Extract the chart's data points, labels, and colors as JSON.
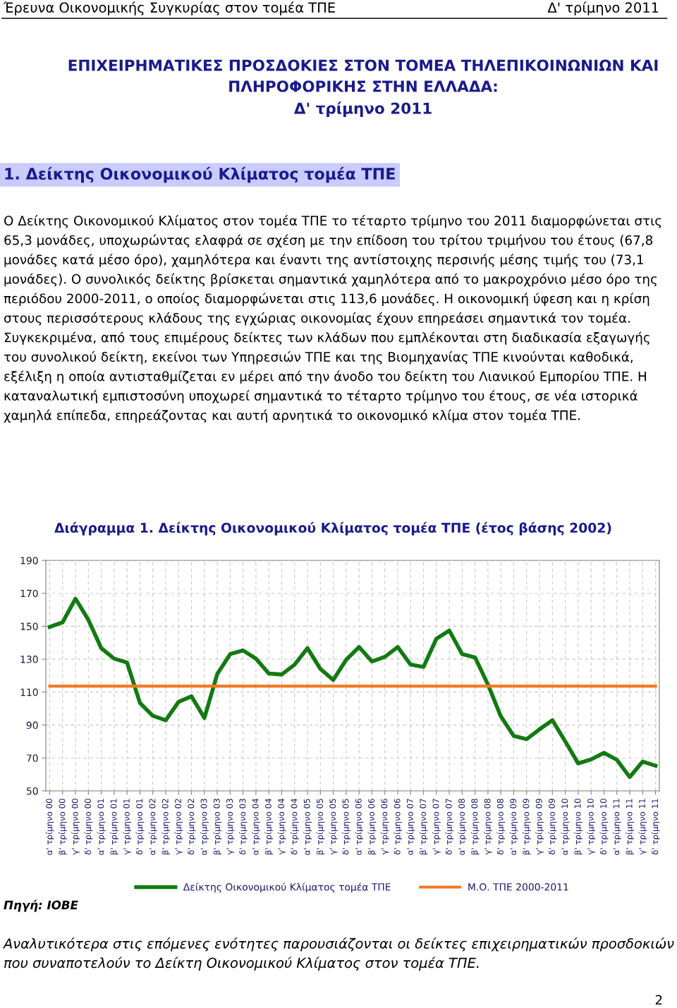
{
  "chart_data": {
    "type": "line",
    "title": "Διάγραμμα 1. Δείκτης Οικονομικού Κλίματος τομέα ΤΠΕ (έτος βάσης 2002)",
    "categories": [
      "α' τρίμηνο 00",
      "β' τρίμηνο 00",
      "γ' τρίμηνο 00",
      "δ' τρίμηνο 00",
      "α' τρίμηνο 01",
      "β' τρίμηνο 01",
      "γ' τρίμηνο 01",
      "δ' τρίμηνο 01",
      "α' τρίμηνο 02",
      "β' τρίμηνο 02",
      "γ' τρίμηνο 02",
      "δ' τρίμηνο 02",
      "α' τρίμηνο 03",
      "β' τρίμηνο 03",
      "γ' τρίμηνο 03",
      "δ' τρίμηνο 03",
      "α' τρίμηνο 04",
      "β' τρίμηνο 04",
      "γ' τρίμηνο 04",
      "δ' τρίμηνο 04",
      "α' τρίμηνο 05",
      "β' τρίμηνο 05",
      "γ' τρίμηνο 05",
      "δ' τρίμηνο 05",
      "α' τρίμηνο 06",
      "β' τρίμηνο 06",
      "γ' τρίμηνο 06",
      "δ' τρίμηνο 06",
      "α' τρίμηνο 07",
      "β' τρίμηνο 07",
      "γ' τρίμηνο 07",
      "δ' τρίμηνο 07",
      "α' τρίμηνο 08",
      "β' τρίμηνο 08",
      "γ' τρίμηνο 08",
      "δ' τρίμηνο 08",
      "α' τρίμηνο 09",
      "β' τρίμηνο 09",
      "γ' τρίμηνο 09",
      "δ' τρίμηνο 09",
      "α' τρίμηνο 10",
      "β' τρίμηνο 10",
      "γ' τρίμηνο 10",
      "δ' τρίμηνο 10",
      "α' τρίμηνο 11",
      "β' τρίμηνο 11",
      "γ' τρίμηνο 11",
      "δ' τρίμηνο 11"
    ],
    "series": [
      {
        "name": "Δείκτης Οικονομικού Κλίματος τομέα ΤΠΕ",
        "color": "#127a12",
        "values": [
          149.6,
          152.4,
          166.7,
          153.9,
          136.7,
          130.3,
          128,
          103.4,
          95.6,
          92.9,
          104.1,
          107.4,
          94.3,
          121,
          133.1,
          135.3,
          130.3,
          121.3,
          120.7,
          126.7,
          136.7,
          124.1,
          117.4,
          129.6,
          137.4,
          128.6,
          131.4,
          137.4,
          126.7,
          125.3,
          142.4,
          147.4,
          133.1,
          131,
          114.6,
          95.3,
          83.4,
          81.4,
          87.4,
          92.9,
          80,
          66.7,
          69.1,
          73.1,
          68.9,
          58.4,
          67.8,
          65.3
        ]
      },
      {
        "name": "Μ.Ο. ΤΠΕ 2000-2011",
        "color": "#f07820",
        "values": [
          113.6,
          113.6,
          113.6,
          113.6,
          113.6,
          113.6,
          113.6,
          113.6,
          113.6,
          113.6,
          113.6,
          113.6,
          113.6,
          113.6,
          113.6,
          113.6,
          113.6,
          113.6,
          113.6,
          113.6,
          113.6,
          113.6,
          113.6,
          113.6,
          113.6,
          113.6,
          113.6,
          113.6,
          113.6,
          113.6,
          113.6,
          113.6,
          113.6,
          113.6,
          113.6,
          113.6,
          113.6,
          113.6,
          113.6,
          113.6,
          113.6,
          113.6,
          113.6,
          113.6,
          113.6,
          113.6,
          113.6,
          113.6
        ]
      }
    ],
    "ylim": [
      50,
      190
    ],
    "yticks": [
      50,
      70,
      90,
      110,
      130,
      150,
      170,
      190
    ],
    "grid": true,
    "legend": "bottom",
    "marker": "none",
    "line_style": "solid",
    "annotations": [
      "Έρευνα Οικονομικής Συγκυρίας στον τομέα ΤΠΕ",
      "Δ' τρίμηνο 2011",
      "ΕΠΙΧΕΙΡΗΜΑΤΙΚΕΣ ΠΡΟΣΔΟΚΙΕΣ ΣΤΟΝ ΤΟΜΕΑ ΤΗΛΕΠΙΚΟΙΝΩΝΙΩΝ ΚΑΙ\nΠΛΗΡΟΦΟΡΙΚΗΣ ΣΤΗΝ ΕΛΛΑΔΑ:\nΔ' τρίμηνο 2011",
      "1. Δείκτης Οικονομικού Κλίματος τομέα ΤΠΕ",
      "Ο Δείκτης Οικονομικού Κλίματος στον τομέα ΤΠΕ το τέταρτο τρίμηνο του 2011 διαμορφώνεται στις 65,3 μονάδες, υποχωρώντας ελαφρά σε σχέση με την επίδοση του τρίτου τριμήνου του έτους (67,8 μονάδες κατά μέσο όρο), χαμηλότερα και έναντι της αντίστοιχης περσινής μέσης τιμής του (73,1 μονάδες). Ο συνολικός δείκτης βρίσκεται σημαντικά χαμηλότερα από το μακροχρόνιο μέσο όρο της περιόδου 2000-2011, ο οποίος διαμορφώνεται στις 113,6 μονάδες. Η οικονομική ύφεση και η κρίση στους περισσότερους κλάδους της εγχώριας οικονομίας έχουν επηρεάσει σημαντικά τον τομέα. Συγκεκριμένα, από τους επιμέρους δείκτες των κλάδων που εμπλέκονται στη διαδικασία εξαγωγής του συνολικού δείκτη, εκείνοι των Υπηρεσιών ΤΠΕ και της Βιομηχανίας ΤΠΕ κινούνται καθοδικά, εξέλιξη η οποία αντισταθμίζεται εν μέρει από την άνοδο του δείκτη του Λιανικού Εμπορίου ΤΠΕ. Η καταναλωτική εμπιστοσύνη υποχωρεί σημαντικά το τέταρτο τρίμηνο του έτους, σε νέα ιστορικά χαμηλά επίπεδα, επηρεάζοντας και αυτή αρνητικά το οικονομικό κλίμα στον τομέα ΤΠΕ.",
      "Πηγή: ΙΟΒΕ",
      "Αναλυτικότερα στις επόμενες ενότητες παρουσιάζονται οι δείκτες επιχειρηματικών προσδοκιών που συναποτελούν το Δείκτη Οικονομικού Κλίματος στον τομέα ΤΠΕ.",
      "2"
    ]
  }
}
